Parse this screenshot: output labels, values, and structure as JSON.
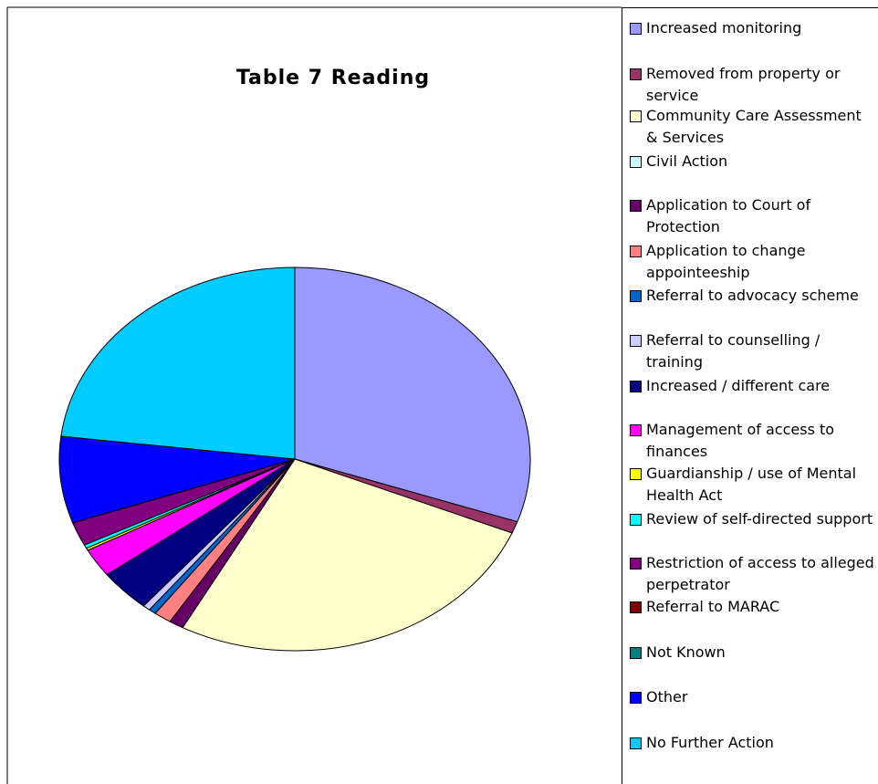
{
  "chart_data": {
    "type": "pie",
    "title": "Table 7  Reading",
    "categories": [
      "Increased monitoring",
      "Removed from property or service",
      "Community Care Assessment & Services",
      "Civil Action",
      "Application to Court of Protection",
      "Application to change appointeeship",
      "Referral to advocacy scheme",
      "Referral to counselling / training",
      "Increased / different care",
      "Management of access to finances",
      "Guardianship / use of Mental Health Act",
      "Review of self-directed support",
      "Restriction of access to alleged perpetrator",
      "Referral to MARAC",
      "Not Known",
      "Other",
      "No Further Action"
    ],
    "values": [
      30.3,
      1,
      26.6,
      0,
      1,
      1.2,
      0.5,
      0.5,
      3.6,
      2.4,
      0.2,
      0.3,
      2,
      0,
      0,
      7.3,
      23.1
    ],
    "colors": [
      "#9999ff",
      "#993366",
      "#ffffcc",
      "#ccffff",
      "#660066",
      "#ff8080",
      "#0066cc",
      "#ccccff",
      "#000080",
      "#ff00ff",
      "#ffff00",
      "#00ffff",
      "#800080",
      "#800000",
      "#008080",
      "#0000ff",
      "#00ccff"
    ],
    "legend": "right"
  }
}
